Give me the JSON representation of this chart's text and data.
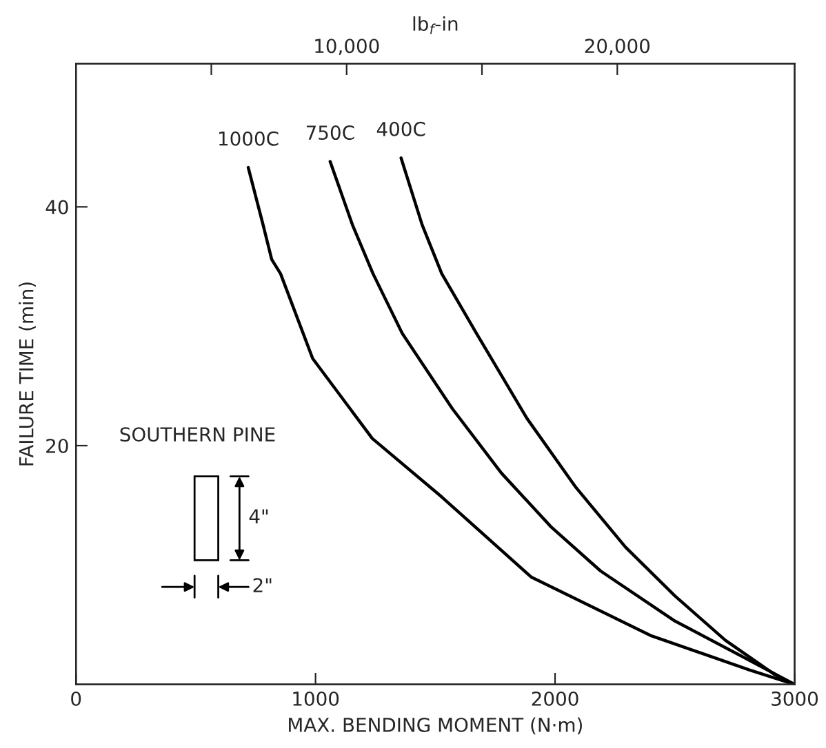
{
  "chart_data": {
    "type": "line",
    "xlabel": "MAX. BENDING MOMENT (N·m)",
    "ylabel": "FAILURE TIME (min)",
    "x2label": "lb$_{f}$-in",
    "xlim": [
      0,
      3000
    ],
    "xticks": [
      0,
      1000,
      2000,
      3000
    ],
    "ylim": [
      0,
      52
    ],
    "yticks": [
      20,
      40
    ],
    "x2lim": [
      0,
      26552
    ],
    "x2ticks": [
      {
        "value": 5000,
        "label": null
      },
      {
        "value": 10000,
        "label": "10,000"
      },
      {
        "value": 15000,
        "label": null
      },
      {
        "value": 20000,
        "label": "20,000"
      }
    ],
    "series": [
      {
        "name": "1000C",
        "color": "#000000",
        "x": [
          719,
          781,
          817,
          854,
          988,
          1237,
          1527,
          1900,
          2398,
          2813,
          3000
        ],
        "values": [
          43.3,
          38.5,
          35.6,
          34.4,
          27.3,
          20.6,
          15.7,
          9.0,
          4.1,
          1.2,
          0
        ]
      },
      {
        "name": "750C",
        "color": "#000000",
        "x": [
          1061,
          1154,
          1240,
          1362,
          1571,
          1776,
          1983,
          2190,
          2501,
          2813,
          3000
        ],
        "values": [
          43.8,
          38.5,
          34.4,
          29.4,
          23.1,
          17.7,
          13.2,
          9.5,
          5.3,
          2.0,
          0
        ]
      },
      {
        "name": "400C",
        "color": "#000000",
        "x": [
          1357,
          1445,
          1527,
          1672,
          1882,
          2087,
          2294,
          2501,
          2711,
          2919,
          3000
        ],
        "values": [
          44.1,
          38.5,
          34.4,
          29.4,
          22.3,
          16.5,
          11.5,
          7.4,
          3.7,
          0.8,
          0
        ]
      }
    ],
    "annotations": [
      "SOUTHERN PINE",
      "4\"",
      "2\""
    ],
    "line_style": "solid",
    "marker": "none",
    "grid": false
  }
}
